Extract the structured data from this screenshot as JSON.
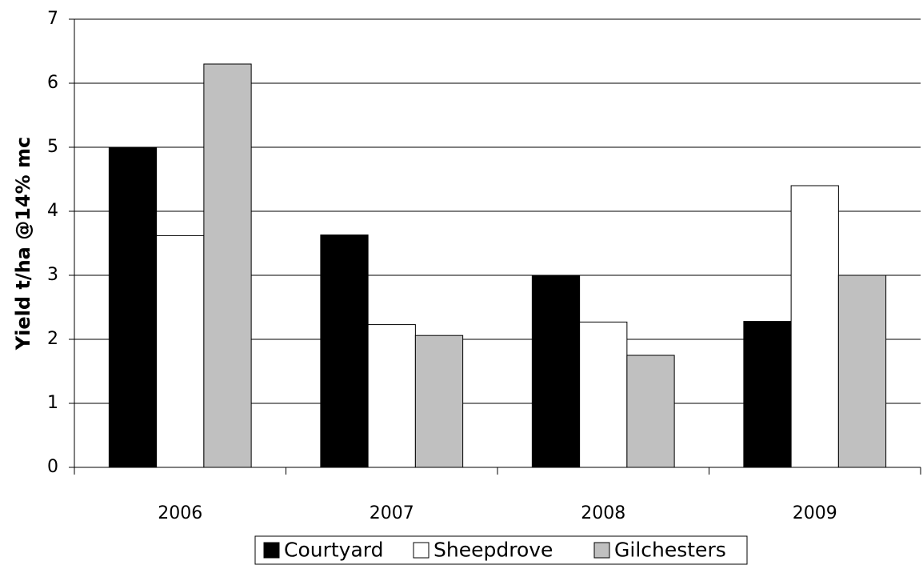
{
  "chart_data": {
    "type": "bar",
    "title": "",
    "xlabel": "",
    "ylabel": "Yield t/ha @14% mc",
    "categories": [
      "2006",
      "2007",
      "2008",
      "2009"
    ],
    "series": [
      {
        "name": "Courtyard",
        "color": "#000000",
        "values": [
          5.0,
          3.63,
          3.0,
          2.28
        ]
      },
      {
        "name": "Sheepdrove",
        "color": "#ffffff",
        "values": [
          3.62,
          2.23,
          2.27,
          4.4
        ]
      },
      {
        "name": "Gilchesters",
        "color": "#c0c0c0",
        "values": [
          6.3,
          2.06,
          1.75,
          3.0
        ]
      }
    ],
    "ylim": [
      0,
      7
    ],
    "yticks": [
      "0",
      "1",
      "2",
      "3",
      "4",
      "5",
      "6",
      "7"
    ],
    "grid": true,
    "legend_position": "bottom"
  }
}
